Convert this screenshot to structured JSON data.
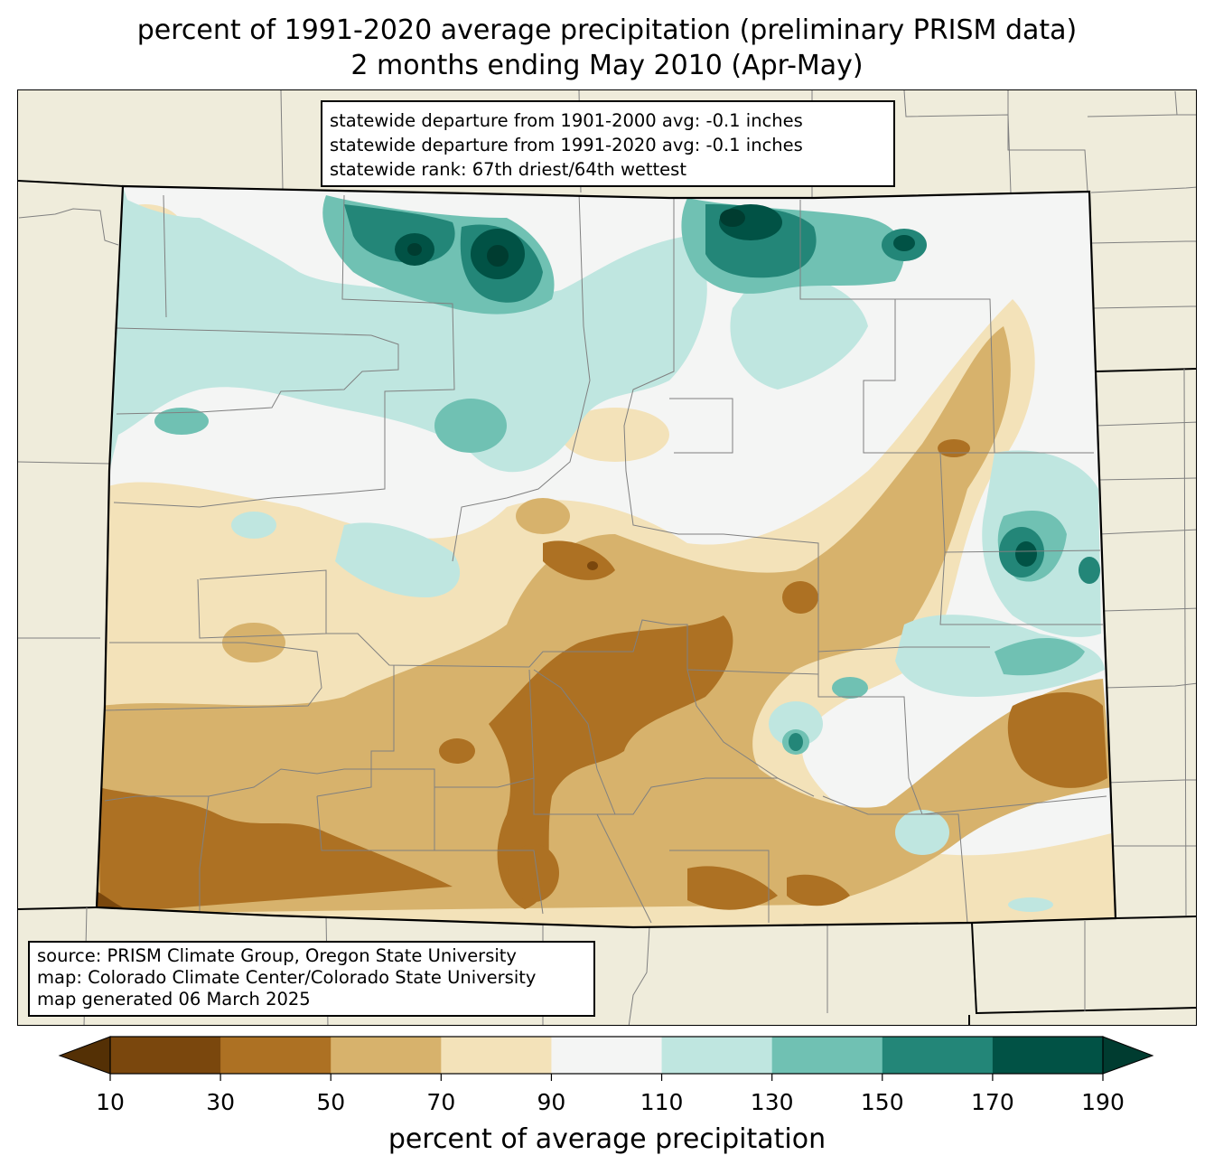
{
  "title": {
    "line1": "percent of 1991-2020 average precipitation (preliminary PRISM data)",
    "line2": "2 months ending May 2010 (Apr-May)"
  },
  "stats": {
    "line1": "statewide departure from 1901-2000 avg: -0.1 inches",
    "line2": "statewide departure from 1991-2020 avg: -0.1 inches",
    "line3": "statewide rank: 67th driest/64th wettest"
  },
  "source": {
    "line1": "source: PRISM Climate Group, Oregon State University",
    "line2": "map: Colorado Climate Center/Colorado State University",
    "line3": "map generated 06 March 2025"
  },
  "legend": {
    "label": "percent of average precipitation",
    "ticks": [
      "10",
      "30",
      "50",
      "70",
      "90",
      "110",
      "130",
      "150",
      "170",
      "190"
    ],
    "colors": {
      "below_10": "#543005",
      "10_30": "#7a470d",
      "30_50": "#ad7123",
      "50_70": "#d7b26c",
      "70_90": "#f3e2b9",
      "90_110": "#f4f5f4",
      "110_130": "#bfe6e0",
      "130_150": "#70c1b3",
      "150_170": "#238678",
      "170_190": "#015245",
      "above_190": "#003c30"
    }
  },
  "map": {
    "background_color": "#efecdb",
    "border_color": "#808080"
  }
}
